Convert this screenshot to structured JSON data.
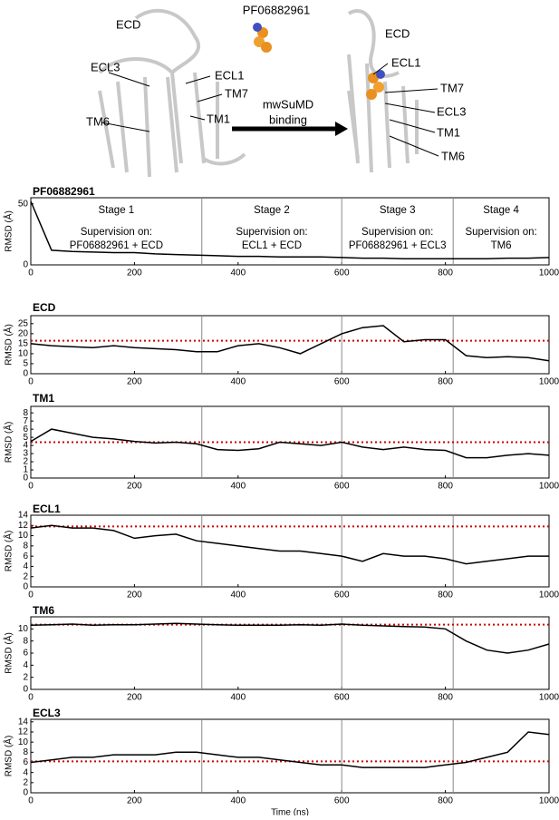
{
  "structure_panel": {
    "labels": [
      "ECD",
      "PF06882961",
      "ECL3",
      "ECL1",
      "TM7",
      "TM6",
      "TM1",
      "mwSuMD",
      "binding",
      "ECD",
      "ECL1",
      "TM7",
      "ECL3",
      "TM1",
      "TM6"
    ]
  },
  "chart_data": [
    {
      "type": "line",
      "title": "PF06882961",
      "ylabel": "RMSD (Å)",
      "xlim": [
        0,
        1000
      ],
      "xticks": [
        0,
        200,
        400,
        600,
        800,
        1000
      ],
      "ylim": [
        0,
        55
      ],
      "yticks": [
        0,
        50
      ],
      "x": [
        0,
        40,
        80,
        120,
        160,
        200,
        240,
        280,
        320,
        360,
        400,
        440,
        480,
        520,
        560,
        600,
        640,
        680,
        720,
        760,
        800,
        840,
        880,
        920,
        960,
        1000
      ],
      "series": [
        {
          "color": "#000000",
          "values": [
            52,
            12,
            11,
            10.5,
            10,
            10,
            9,
            8.5,
            8,
            7.5,
            7,
            7,
            6.5,
            6.5,
            6.5,
            6,
            5.5,
            5.5,
            5,
            5,
            5,
            5,
            5,
            5.5,
            5.5,
            6
          ]
        }
      ],
      "stage_boundaries": [
        330,
        600,
        815
      ],
      "stages": [
        {
          "title": "Stage 1",
          "lines": [
            "Supervision on:",
            "PF06882961 + ECD"
          ]
        },
        {
          "title": "Stage 2",
          "lines": [
            "Supervision on:",
            "ECL1 + ECD"
          ]
        },
        {
          "title": "Stage 3",
          "lines": [
            "Supervision on:",
            "PF06882961 + ECL3"
          ]
        },
        {
          "title": "Stage 4",
          "lines": [
            "Supervision on:",
            "TM6"
          ]
        }
      ]
    },
    {
      "type": "line",
      "title": "ECD",
      "ylabel": "RMSD (Å)",
      "xlim": [
        0,
        1000
      ],
      "xticks": [
        0,
        200,
        400,
        600,
        800,
        1000
      ],
      "ylim": [
        0,
        29
      ],
      "yticks": [
        0,
        5,
        10,
        15,
        20,
        25
      ],
      "x": [
        0,
        40,
        80,
        120,
        160,
        200,
        240,
        280,
        320,
        360,
        400,
        440,
        480,
        520,
        560,
        600,
        640,
        680,
        720,
        760,
        800,
        840,
        880,
        920,
        960,
        1000
      ],
      "series": [
        {
          "color": "#000000",
          "values": [
            15,
            14,
            13.5,
            13,
            14,
            13,
            12.5,
            12,
            11,
            11,
            14,
            15,
            13,
            10,
            15,
            20,
            23,
            24,
            16,
            17,
            17,
            9,
            8,
            8.5,
            8,
            6.5
          ]
        }
      ],
      "stage_boundaries": [
        330,
        600,
        815
      ],
      "reference_line": 16.5,
      "reference_color": "#cc0000"
    },
    {
      "type": "line",
      "title": "TM1",
      "ylabel": "RMSD (Å)",
      "xlim": [
        0,
        1000
      ],
      "xticks": [
        0,
        200,
        400,
        600,
        800,
        1000
      ],
      "ylim": [
        0,
        8.8
      ],
      "yticks": [
        0,
        1,
        2,
        3,
        4,
        5,
        6,
        7,
        8
      ],
      "x": [
        0,
        40,
        80,
        120,
        160,
        200,
        240,
        280,
        320,
        360,
        400,
        440,
        480,
        520,
        560,
        600,
        640,
        680,
        720,
        760,
        800,
        840,
        880,
        920,
        960,
        1000
      ],
      "series": [
        {
          "color": "#000000",
          "values": [
            4.5,
            6,
            5.5,
            5,
            4.8,
            4.5,
            4.3,
            4.4,
            4.2,
            3.5,
            3.4,
            3.6,
            4.4,
            4.2,
            4,
            4.4,
            3.8,
            3.5,
            3.8,
            3.5,
            3.4,
            2.5,
            2.5,
            2.8,
            3,
            2.8
          ]
        }
      ],
      "stage_boundaries": [
        330,
        600,
        815
      ],
      "reference_line": 4.4,
      "reference_color": "#cc0000"
    },
    {
      "type": "line",
      "title": "ECL1",
      "ylabel": "RMSD (Å)",
      "xlim": [
        0,
        1000
      ],
      "xticks": [
        0,
        200,
        400,
        600,
        800,
        1000
      ],
      "ylim": [
        0,
        14
      ],
      "yticks": [
        0,
        2,
        4,
        6,
        8,
        10,
        12,
        14
      ],
      "x": [
        0,
        40,
        80,
        120,
        160,
        200,
        240,
        280,
        320,
        360,
        400,
        440,
        480,
        520,
        560,
        600,
        640,
        680,
        720,
        760,
        800,
        840,
        880,
        920,
        960,
        1000
      ],
      "series": [
        {
          "color": "#000000",
          "values": [
            11.5,
            12,
            11.5,
            11.5,
            11,
            9.5,
            10,
            10.3,
            9,
            8.5,
            8,
            7.5,
            7,
            7,
            6.5,
            6,
            5,
            6.5,
            6,
            6,
            5.5,
            4.5,
            5,
            5.5,
            6,
            6
          ]
        }
      ],
      "stage_boundaries": [
        330,
        600,
        815
      ],
      "reference_line": 11.8,
      "reference_color": "#cc0000"
    },
    {
      "type": "line",
      "title": "TM6",
      "ylabel": "RMSD (Å)",
      "xlim": [
        0,
        1000
      ],
      "xticks": [
        0,
        200,
        400,
        600,
        800,
        1000
      ],
      "ylim": [
        0,
        12
      ],
      "yticks": [
        0,
        2,
        4,
        6,
        8,
        10
      ],
      "x": [
        0,
        40,
        80,
        120,
        160,
        200,
        240,
        280,
        320,
        360,
        400,
        440,
        480,
        520,
        560,
        600,
        640,
        680,
        720,
        760,
        800,
        840,
        880,
        920,
        960,
        1000
      ],
      "series": [
        {
          "color": "#000000",
          "values": [
            10.6,
            10.7,
            10.8,
            10.6,
            10.7,
            10.7,
            10.8,
            10.9,
            10.8,
            10.7,
            10.6,
            10.6,
            10.6,
            10.7,
            10.6,
            10.8,
            10.6,
            10.5,
            10.4,
            10.3,
            10,
            8,
            6.5,
            6,
            6.5,
            7.5
          ]
        }
      ],
      "stage_boundaries": [
        330,
        600,
        815
      ],
      "reference_line": 10.7,
      "reference_color": "#cc0000"
    },
    {
      "type": "line",
      "title": "ECL3",
      "ylabel": "RMSD (Å)",
      "xlabel": "Time (ns)",
      "xlim": [
        0,
        1000
      ],
      "xticks": [
        0,
        200,
        400,
        600,
        800,
        1000
      ],
      "ylim": [
        0,
        14.5
      ],
      "yticks": [
        0,
        2,
        4,
        6,
        8,
        10,
        12,
        14
      ],
      "x": [
        0,
        40,
        80,
        120,
        160,
        200,
        240,
        280,
        320,
        360,
        400,
        440,
        480,
        520,
        560,
        600,
        640,
        680,
        720,
        760,
        800,
        840,
        880,
        920,
        960,
        1000
      ],
      "series": [
        {
          "color": "#000000",
          "values": [
            6,
            6.5,
            7,
            7,
            7.5,
            7.5,
            7.5,
            8,
            8,
            7.5,
            7,
            7,
            6.5,
            6,
            5.5,
            5.5,
            5,
            5,
            5,
            5,
            5.5,
            6,
            7,
            8,
            12,
            11.5
          ]
        }
      ],
      "stage_boundaries": [
        330,
        600,
        815
      ],
      "reference_line": 6.2,
      "reference_color": "#cc0000"
    }
  ]
}
